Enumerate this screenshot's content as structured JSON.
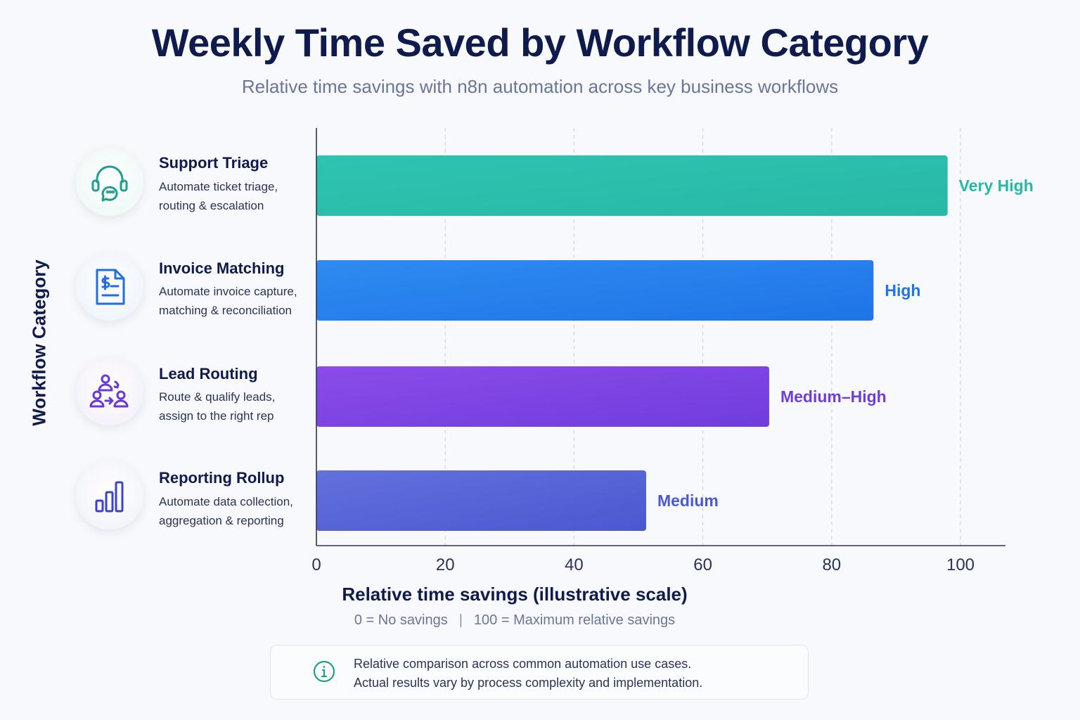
{
  "chart_data": {
    "type": "bar",
    "orientation": "horizontal",
    "title": "Weekly Time Saved by Workflow Category",
    "subtitle": "Relative time savings with n8n automation across key business workflows",
    "ylabel": "Workflow Category",
    "xlabel": "Relative time savings (illustrative scale)",
    "x_note_left": "0 = No savings",
    "x_note_separator": "|",
    "x_note_right": "100 = Maximum relative savings",
    "xlim": [
      0,
      105
    ],
    "xticks": [
      "0",
      "20",
      "40",
      "60",
      "80",
      "100"
    ],
    "grid": "vertical dashed",
    "categories": [
      {
        "name": "Support Triage",
        "desc": [
          "Automate ticket triage,",
          "routing & escalation"
        ],
        "icon": "headset-chat-icon",
        "value": 98,
        "label": "Very High",
        "color": "#2ec4b0",
        "color2": "#28b8a6",
        "circle_bg": "#eaf7f4"
      },
      {
        "name": "Invoice Matching",
        "desc": [
          "Automate invoice capture,",
          "matching & reconciliation"
        ],
        "icon": "invoice-dollar-icon",
        "value": 86.5,
        "label": "High",
        "color": "#2f8bf0",
        "color2": "#1f74e6",
        "circle_bg": "#eaf1fc"
      },
      {
        "name": "Lead Routing",
        "desc": [
          "Route & qualify leads,",
          "assign to the right rep"
        ],
        "icon": "users-routing-icon",
        "value": 70.3,
        "label": "Medium–High",
        "color": "#8b4ce8",
        "color2": "#6f3ddd",
        "circle_bg": "#f2ecfb"
      },
      {
        "name": "Reporting Rollup",
        "desc": [
          "Automate data collection,",
          "aggregation & reporting"
        ],
        "icon": "bar-chart-icon",
        "value": 51.2,
        "label": "Medium",
        "color": "#6470dc",
        "color2": "#4b58d0",
        "circle_bg": "#eff0fb"
      }
    ]
  },
  "note": {
    "icon": "info-icon",
    "line1": "Relative comparison across common automation use cases.",
    "line2": "Actual results vary by process complexity and implementation."
  }
}
